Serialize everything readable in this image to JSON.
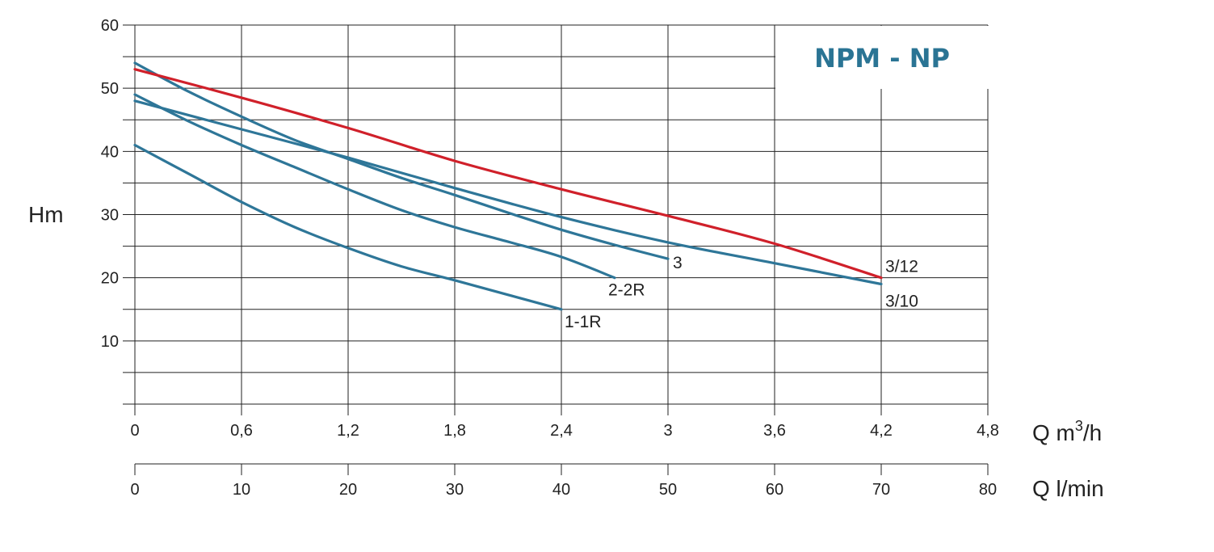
{
  "chart_data": {
    "type": "line",
    "title": "NPM - NP",
    "ylabel": "Hm",
    "xlabel_primary": "Q m",
    "xlabel_primary_sup": "3",
    "xlabel_primary_suffix": "/h",
    "xlabel_secondary": "Q l/min",
    "xlim": [
      0,
      4.8
    ],
    "ylim": [
      0,
      60
    ],
    "x2lim": [
      0,
      80
    ],
    "y_ticks": [
      "10",
      "20",
      "30",
      "40",
      "50",
      "60"
    ],
    "x_ticks": [
      "0",
      "0,6",
      "1,2",
      "1,8",
      "2,4",
      "3",
      "3,6",
      "4,2",
      "4,8"
    ],
    "x2_ticks": [
      "0",
      "10",
      "20",
      "30",
      "40",
      "50",
      "60",
      "70",
      "80"
    ],
    "grid": true,
    "colors": {
      "blue": "#2e7698",
      "red": "#d0202a",
      "title": "#2a7494",
      "grid": "#222222"
    },
    "series": [
      {
        "name": "1-1R",
        "color": "#2e7698",
        "x": [
          0,
          0.3,
          0.6,
          0.9,
          1.2,
          1.5,
          1.8,
          2.1,
          2.4
        ],
        "y": [
          41,
          36.5,
          32,
          28,
          24.7,
          21.8,
          19.6,
          17.3,
          15
        ]
      },
      {
        "name": "2-2R",
        "color": "#2e7698",
        "x": [
          0,
          0.3,
          0.6,
          0.9,
          1.2,
          1.5,
          1.8,
          2.1,
          2.4,
          2.7
        ],
        "y": [
          49,
          44.8,
          41,
          37.5,
          34,
          30.7,
          28,
          25.7,
          23.3,
          20
        ]
      },
      {
        "name": "3",
        "color": "#2e7698",
        "x": [
          0,
          0.3,
          0.6,
          0.9,
          1.2,
          1.5,
          1.8,
          2.1,
          2.4,
          2.7,
          3.0
        ],
        "y": [
          54,
          49.5,
          45.5,
          41.8,
          38.8,
          35.8,
          33.1,
          30.3,
          27.6,
          25.2,
          23
        ]
      },
      {
        "name": "3/10",
        "color": "#2e7698",
        "x": [
          0,
          0.6,
          1.2,
          1.8,
          2.4,
          3.0,
          3.6,
          4.2
        ],
        "y": [
          48,
          43.5,
          39,
          34.2,
          29.6,
          25.6,
          22.3,
          19
        ]
      },
      {
        "name": "3/12",
        "color": "#d0202a",
        "x": [
          0,
          0.6,
          1.2,
          1.8,
          2.4,
          3.0,
          3.6,
          4.2
        ],
        "y": [
          53,
          48.5,
          43.7,
          38.5,
          34,
          29.8,
          25.4,
          20
        ]
      }
    ]
  }
}
